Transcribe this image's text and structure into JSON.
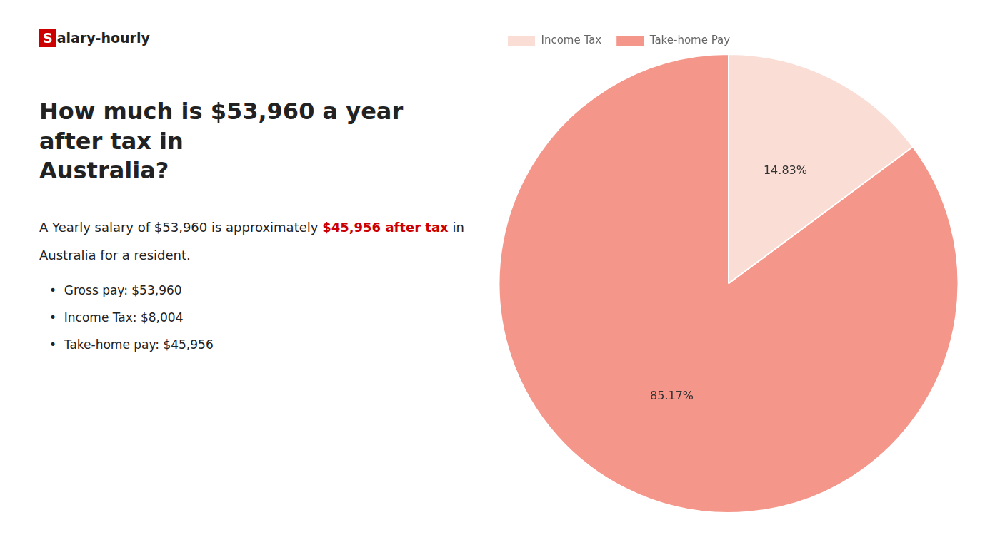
{
  "chart_data": {
    "type": "pie",
    "title": [
      "How much is $53,960 a year after tax in",
      "Australia?"
    ],
    "categories": [
      "Income Tax",
      "Take-home Pay"
    ],
    "values": [
      14.83,
      85.17
    ],
    "value_labels": [
      "14.83%",
      "85.17%"
    ],
    "colors": [
      "#faddd4",
      "#f4968a"
    ],
    "data_labels": true,
    "legend": "top",
    "annotations": [
      [
        {
          "text": "S",
          "background": "#cc0000"
        },
        {
          "text": "alary-hourly"
        }
      ],
      [
        {
          "text": "A Yearly salary of $53,960 is approximately "
        },
        {
          "text": "$45,956 after tax",
          "color": "#cc0000"
        },
        {
          "text": " in"
        }
      ],
      [
        {
          "text": "Australia for a resident."
        }
      ],
      [
        {
          "text": "•  Gross pay: $53,960"
        }
      ],
      [
        {
          "text": "•  Income Tax: $8,004"
        }
      ],
      [
        {
          "text": "•  Take-home pay: $45,956"
        }
      ]
    ]
  }
}
